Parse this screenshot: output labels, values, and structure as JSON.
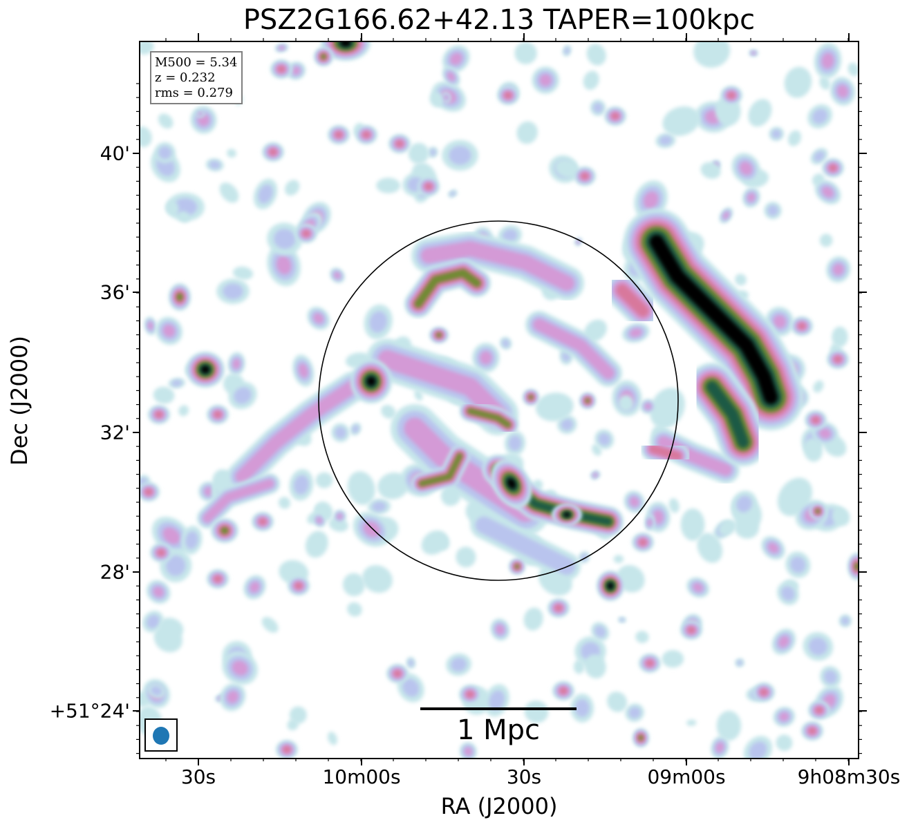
{
  "title": "PSZ2G166.62+42.13 TAPER=100kpc",
  "xlabel": "RA (J2000)",
  "ylabel": "Dec (J2000)",
  "xticks": [
    "30s",
    "10m00s",
    "30s",
    "09m00s",
    "9h08m30s"
  ],
  "yticks": [
    "40'",
    "36'",
    "32'",
    "28'",
    "+51°24'"
  ],
  "info": {
    "m500": "M500 = 5.34",
    "z": "z = 0.232",
    "rms": "rms = 0.279"
  },
  "scalebar": "1 Mpc",
  "colormap": [
    "#ffffff",
    "#c6e6ea",
    "#b9c4ee",
    "#d49ad6",
    "#d8789c",
    "#6f8a30",
    "#1f5a45",
    "#000000"
  ],
  "beam_color": "#1f77b4",
  "circle_color": "#000000"
}
